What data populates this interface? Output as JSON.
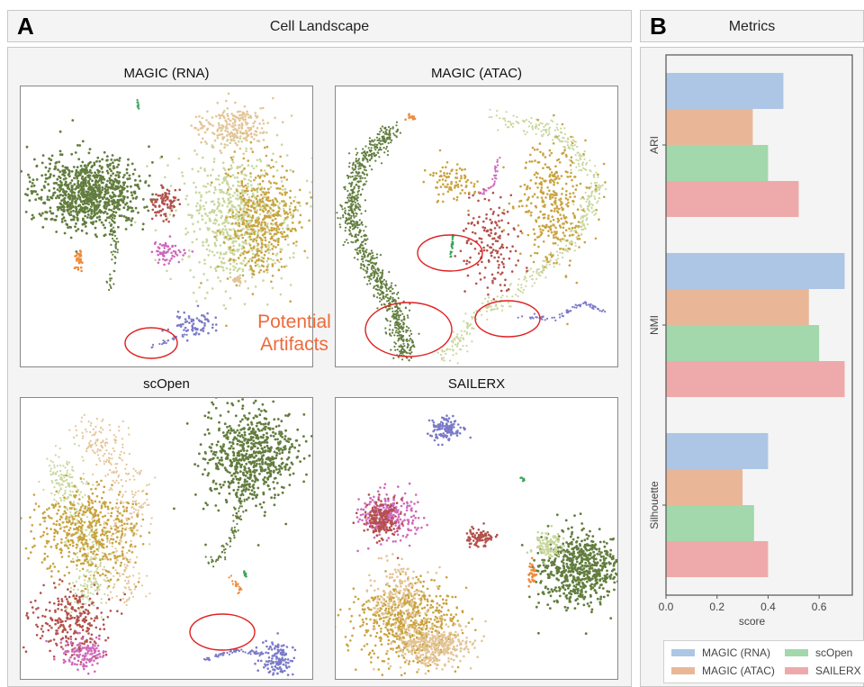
{
  "panel_a": {
    "letter": "A",
    "title": "Cell Landscape",
    "plots": [
      {
        "title": "MAGIC (RNA)"
      },
      {
        "title": "MAGIC (ATAC)"
      },
      {
        "title": "scOpen"
      },
      {
        "title": "SAILERX"
      }
    ],
    "annotation": {
      "line1": "Potential",
      "line2": "Artifacts"
    }
  },
  "panel_b": {
    "letter": "B",
    "title": "Metrics"
  },
  "colors": {
    "olive": "#627d3e",
    "light_green": "#c9d79e",
    "gold": "#c9a33f",
    "tan": "#e3c597",
    "brick": "#b3504a",
    "pink": "#cf69bb",
    "blue": "#7a7ac8",
    "orange": "#ee8a3a",
    "green": "#3aa55a",
    "artifact_red": "#e02020"
  },
  "chart_data": {
    "type": "bar",
    "orientation": "horizontal",
    "categories": [
      "ARI",
      "NMI",
      "Silhouette"
    ],
    "series": [
      {
        "name": "MAGIC (RNA)",
        "values": [
          0.46,
          0.7,
          0.4
        ],
        "color": "#adc6e5"
      },
      {
        "name": "MAGIC (ATAC)",
        "values": [
          0.34,
          0.56,
          0.3
        ],
        "color": "#e9b798"
      },
      {
        "name": "scOpen",
        "values": [
          0.4,
          0.6,
          0.345
        ],
        "color": "#a2d8ab"
      },
      {
        "name": "SAILERX",
        "values": [
          0.52,
          0.7,
          0.4
        ],
        "color": "#eeaaaa"
      }
    ],
    "xlabel": "score",
    "ylabel": "",
    "xlim": [
      0,
      0.73
    ],
    "xticks": [
      0.0,
      0.2,
      0.4,
      0.6
    ],
    "xtick_labels": [
      "0.0",
      "0.2",
      "0.4",
      "0.6"
    ],
    "grid": false,
    "legend_position": "bottom"
  }
}
